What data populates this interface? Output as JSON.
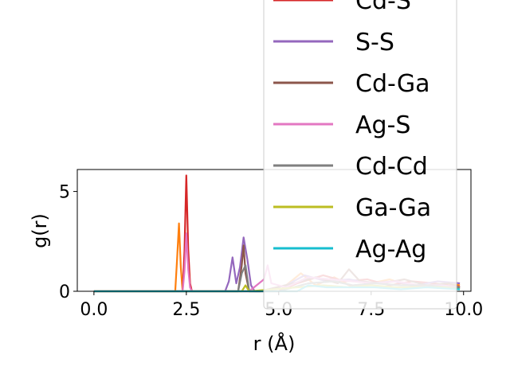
{
  "chart_data": {
    "type": "line",
    "title": "",
    "xlabel": "r (Å)",
    "ylabel": "g(r)",
    "xlim": [
      -0.45,
      10.2
    ],
    "ylim": [
      0,
      6.1
    ],
    "x_ticks": [
      "0.0",
      "2.5",
      "5.0",
      "7.5",
      "10.0"
    ],
    "x_tick_values": [
      0.0,
      2.5,
      5.0,
      7.5,
      10.0
    ],
    "y_ticks": [
      "0",
      "5"
    ],
    "y_tick_values": [
      0,
      5
    ],
    "grid": false,
    "legend_position": "upper-right (overflows plot area)",
    "series": [
      {
        "name": "",
        "color": "#ff7f0e",
        "x": [
          0.0,
          2.15,
          2.2,
          2.25,
          2.3,
          2.35,
          2.4,
          5.0,
          5.6,
          6.0,
          6.5,
          7.0,
          7.5,
          8.0,
          8.5,
          9.0,
          9.5,
          9.9
        ],
        "y": [
          0,
          0,
          0,
          1.6,
          3.4,
          1.2,
          0,
          0,
          0.9,
          0.3,
          0.7,
          0.2,
          0.4,
          0.6,
          0.3,
          0.2,
          0.4,
          0.3
        ]
      },
      {
        "name": "Cd-S",
        "color": "#d62728",
        "x": [
          0.0,
          2.4,
          2.45,
          2.5,
          2.55,
          2.6,
          2.65,
          5.0,
          5.5,
          6.2,
          6.8,
          7.4,
          8.0,
          8.6,
          9.2,
          9.9
        ],
        "y": [
          0,
          0,
          2.0,
          5.8,
          2.1,
          0.4,
          0,
          0,
          0.4,
          0.8,
          0.5,
          0.6,
          0.3,
          0.5,
          0.4,
          0.2
        ]
      },
      {
        "name": "S-S",
        "color": "#9467bd",
        "x": [
          0.0,
          3.55,
          3.65,
          3.75,
          3.85,
          3.95,
          4.05,
          4.15,
          4.25,
          4.35,
          4.5,
          5.2,
          5.7,
          6.3,
          6.9,
          7.5,
          8.1,
          8.7,
          9.3,
          9.9
        ],
        "y": [
          0,
          0,
          0.5,
          1.7,
          0.4,
          1.2,
          2.7,
          1.6,
          0.3,
          0,
          0,
          0.3,
          0.8,
          0.5,
          0.6,
          0.4,
          0.5,
          0.3,
          0.5,
          0.4
        ]
      },
      {
        "name": "Cd-Ga",
        "color": "#8c564b",
        "x": [
          0.0,
          3.9,
          4.0,
          4.05,
          4.1,
          4.2,
          4.5,
          5.4,
          6.0,
          6.6,
          6.9,
          7.2,
          7.8,
          8.4,
          9.0,
          9.6,
          9.9
        ],
        "y": [
          0,
          0,
          1.3,
          2.3,
          0.9,
          0,
          0,
          0.4,
          0.7,
          0.4,
          1.1,
          0.5,
          0.4,
          0.6,
          0.3,
          0.4,
          0.2
        ]
      },
      {
        "name": "Ag-S",
        "color": "#e377c2",
        "x": [
          0.0,
          2.4,
          2.45,
          2.5,
          2.55,
          2.6,
          2.65,
          4.2,
          4.6,
          4.7,
          4.8,
          5.2,
          5.8,
          6.4,
          7.0,
          7.6,
          8.2,
          8.8,
          9.4,
          9.9
        ],
        "y": [
          0,
          0,
          1.0,
          2.9,
          1.1,
          0.2,
          0,
          0,
          0.6,
          1.3,
          0.4,
          0.2,
          0.7,
          0.6,
          0.5,
          0.4,
          0.5,
          0.3,
          0.3,
          0.2
        ]
      },
      {
        "name": "Cd-Cd",
        "color": "#7f7f7f",
        "x": [
          0.0,
          3.9,
          4.0,
          4.1,
          4.2,
          5.0,
          5.8,
          6.5,
          7.0,
          7.6,
          8.3,
          9.0,
          9.6,
          9.9
        ],
        "y": [
          0,
          0,
          0.9,
          1.3,
          0,
          0,
          0.4,
          0.5,
          0.3,
          0.4,
          0.3,
          0.3,
          0.2,
          0.2
        ]
      },
      {
        "name": "Ga-Ga",
        "color": "#bcbd22",
        "x": [
          0.0,
          4.0,
          4.1,
          4.2,
          5.5,
          6.2,
          6.9,
          7.5,
          8.2,
          8.9,
          9.5,
          9.9
        ],
        "y": [
          0,
          0,
          0.3,
          0,
          0.2,
          0.3,
          0.2,
          0.3,
          0.2,
          0.2,
          0.2,
          0.1
        ]
      },
      {
        "name": "Ag-Ag",
        "color": "#17becf",
        "x": [
          0.0,
          5.5,
          5.8,
          6.3,
          6.9,
          7.6,
          8.3,
          9.0,
          9.9
        ],
        "y": [
          0,
          0,
          0.3,
          0.2,
          0.2,
          0.2,
          0.1,
          0.2,
          0.1
        ]
      }
    ]
  }
}
